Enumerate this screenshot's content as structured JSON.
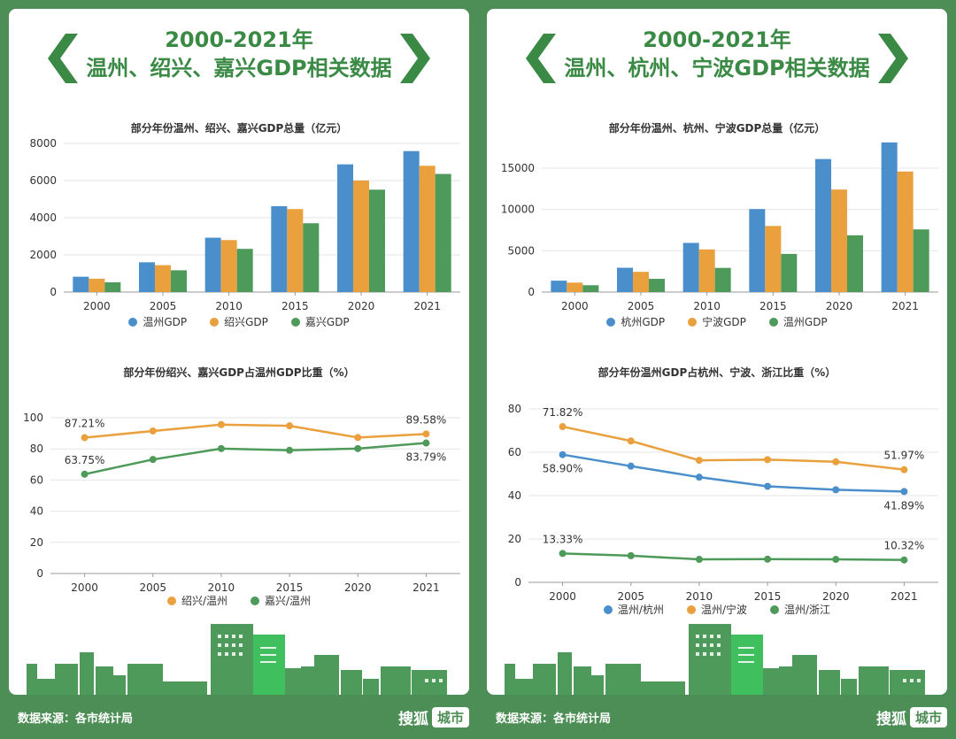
{
  "panels": [
    {
      "title_line1": "2000-2021年",
      "title_line2": "温州、绍兴、嘉兴GDP相关数据",
      "chart1_title": "部分年份温州、绍兴、嘉兴GDP总量（亿元）",
      "chart2_title": "部分年份绍兴、嘉兴GDP占温州GDP比重（%）"
    },
    {
      "title_line1": "2000-2021年",
      "title_line2": "温州、杭州、宁波GDP相关数据",
      "chart1_title": "部分年份温州、杭州、宁波GDP总量（亿元）",
      "chart2_title": "部分年份温州GDP占杭州、宁波、浙江比重（%）"
    }
  ],
  "footer": {
    "source": "数据来源：各市统计局",
    "brand_main": "搜狐",
    "brand_sub": "城市"
  },
  "colors": {
    "blue": "#4a8fcb",
    "orange": "#e9a03d",
    "green": "#4e9a5a",
    "bg": "#4c8e55"
  },
  "icons": [
    "chevron-left-icon",
    "chevron-right-icon",
    "city-skyline-illustration"
  ],
  "chart_data": [
    {
      "type": "bar",
      "title": "部分年份温州、绍兴、嘉兴GDP总量（亿元）",
      "categories": [
        "2000",
        "2005",
        "2010",
        "2015",
        "2020",
        "2021"
      ],
      "ylim": [
        0,
        8000
      ],
      "yticks": [
        0,
        2000,
        4000,
        6000,
        8000
      ],
      "legend_position": "bottom",
      "grid": "horizontal",
      "series": [
        {
          "name": "温州GDP",
          "color": "#4a8fcb",
          "values": [
            826,
            1602,
            2925,
            4620,
            6871,
            7585
          ]
        },
        {
          "name": "绍兴GDP",
          "color": "#e9a03d",
          "values": [
            720,
            1447,
            2796,
            4466,
            6001,
            6795
          ]
        },
        {
          "name": "嘉兴GDP",
          "color": "#4e9a5a",
          "values": [
            527,
            1172,
            2324,
            3702,
            5510,
            6355
          ]
        }
      ]
    },
    {
      "type": "line",
      "title": "部分年份绍兴、嘉兴GDP占温州GDP比重（%）",
      "categories": [
        "2000",
        "2005",
        "2010",
        "2015",
        "2020",
        "2021"
      ],
      "ylim": [
        0,
        100
      ],
      "yticks": [
        0,
        20,
        40,
        60,
        80,
        100
      ],
      "legend_position": "bottom",
      "grid": "horizontal",
      "series": [
        {
          "name": "绍兴/温州",
          "color": "#e9a03d",
          "values": [
            87.21,
            91.5,
            95.6,
            94.8,
            87.3,
            89.58
          ],
          "labels": [
            {
              "index": 0,
              "text": "87.21%",
              "pos": "above"
            },
            {
              "index": 5,
              "text": "89.58%",
              "pos": "above"
            }
          ]
        },
        {
          "name": "嘉兴/温州",
          "color": "#4e9a5a",
          "values": [
            63.75,
            73.2,
            80.2,
            79.1,
            80.2,
            83.79
          ],
          "labels": [
            {
              "index": 0,
              "text": "63.75%",
              "pos": "above"
            },
            {
              "index": 5,
              "text": "83.79%",
              "pos": "below"
            }
          ]
        }
      ]
    },
    {
      "type": "bar",
      "title": "部分年份温州、杭州、宁波GDP总量（亿元）",
      "categories": [
        "2000",
        "2005",
        "2010",
        "2015",
        "2020",
        "2021"
      ],
      "ylim": [
        0,
        18000
      ],
      "yticks": [
        0,
        5000,
        10000,
        15000
      ],
      "legend_position": "bottom",
      "grid": "horizontal",
      "series": [
        {
          "name": "杭州GDP",
          "color": "#4a8fcb",
          "values": [
            1382,
            2943,
            5949,
            10050,
            16106,
            18109
          ]
        },
        {
          "name": "宁波GDP",
          "color": "#e9a03d",
          "values": [
            1145,
            2447,
            5163,
            8003,
            12409,
            14595
          ]
        },
        {
          "name": "温州GDP",
          "color": "#4e9a5a",
          "values": [
            826,
            1602,
            2925,
            4620,
            6871,
            7585
          ]
        }
      ]
    },
    {
      "type": "line",
      "title": "部分年份温州GDP占杭州、宁波、浙江比重（%）",
      "categories": [
        "2000",
        "2005",
        "2010",
        "2015",
        "2020",
        "2021"
      ],
      "ylim": [
        0,
        80
      ],
      "yticks": [
        0,
        20,
        40,
        60,
        80
      ],
      "legend_position": "bottom",
      "grid": "horizontal",
      "series": [
        {
          "name": "温州/杭州",
          "color": "#4a8fcb",
          "values": [
            58.9,
            53.6,
            48.5,
            44.3,
            42.7,
            41.89
          ],
          "labels": [
            {
              "index": 0,
              "text": "58.90%",
              "pos": "below"
            },
            {
              "index": 5,
              "text": "41.89%",
              "pos": "below"
            }
          ]
        },
        {
          "name": "温州/宁波",
          "color": "#e9a03d",
          "values": [
            71.82,
            65.2,
            56.3,
            56.6,
            55.6,
            51.97
          ],
          "labels": [
            {
              "index": 0,
              "text": "71.82%",
              "pos": "above"
            },
            {
              "index": 5,
              "text": "51.97%",
              "pos": "above"
            }
          ]
        },
        {
          "name": "温州/浙江",
          "color": "#4e9a5a",
          "values": [
            13.33,
            12.3,
            10.6,
            10.7,
            10.6,
            10.32
          ],
          "labels": [
            {
              "index": 0,
              "text": "13.33%",
              "pos": "above"
            },
            {
              "index": 5,
              "text": "10.32%",
              "pos": "above"
            }
          ]
        }
      ]
    }
  ]
}
